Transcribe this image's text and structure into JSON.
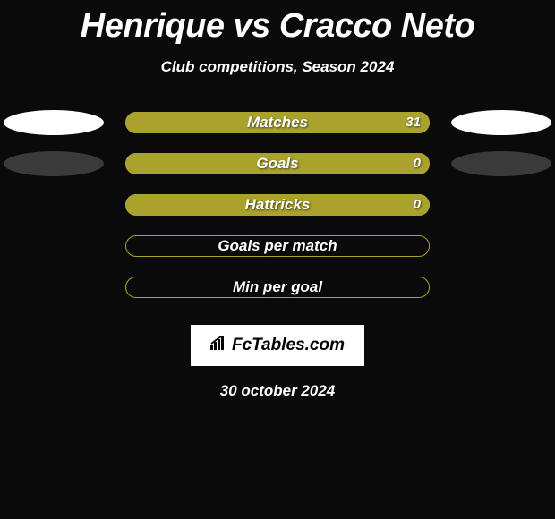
{
  "title": "Henrique vs Cracco Neto",
  "subtitle": "Club competitions, Season 2024",
  "date": "30 october 2024",
  "brand": "FcTables.com",
  "colors": {
    "bar_fill": "#a9a32e",
    "bar_border": "#a9a32e",
    "ellipse_white": "#ffffff",
    "ellipse_dark": "#3a3a3a",
    "background": "#0a0a0a",
    "text": "#ffffff"
  },
  "rows": [
    {
      "label": "Matches",
      "value": "31",
      "fill_pct": 100,
      "left_ellipse": "#ffffff",
      "right_ellipse": "#ffffff"
    },
    {
      "label": "Goals",
      "value": "0",
      "fill_pct": 100,
      "left_ellipse": "#3a3a3a",
      "right_ellipse": "#3a3a3a"
    },
    {
      "label": "Hattricks",
      "value": "0",
      "fill_pct": 100,
      "left_ellipse": null,
      "right_ellipse": null
    },
    {
      "label": "Goals per match",
      "value": "",
      "fill_pct": 0,
      "left_ellipse": null,
      "right_ellipse": null
    },
    {
      "label": "Min per goal",
      "value": "",
      "fill_pct": 0,
      "left_ellipse": null,
      "right_ellipse": null
    }
  ]
}
